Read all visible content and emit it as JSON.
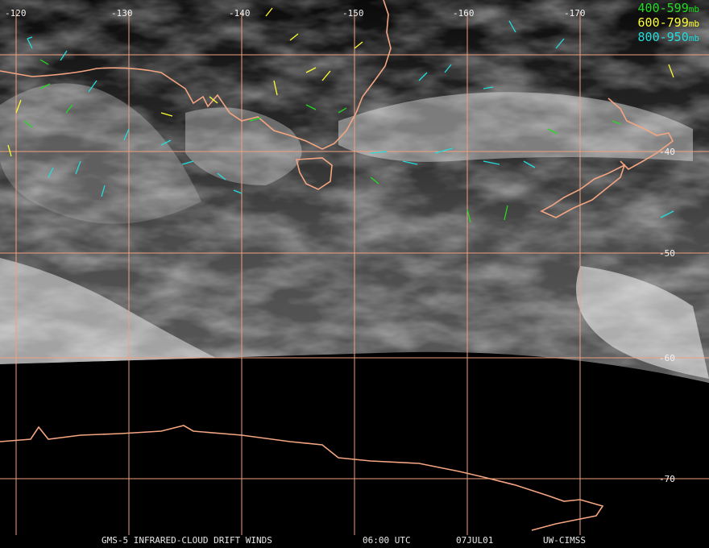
{
  "map": {
    "colors": {
      "grid": "#f0a080",
      "coast": "#f4a582",
      "background": "#000000",
      "label": "#f2f2f2"
    },
    "longitude_labels": [
      "-120",
      "-130",
      "-140",
      "-150",
      "-160",
      "-170"
    ],
    "latitude_labels": [
      "-40",
      "-50",
      "-60",
      "-70"
    ]
  },
  "legend": [
    {
      "range": "400-599",
      "unit": "mb",
      "color": "#22dd22"
    },
    {
      "range": "600-799",
      "unit": "mb",
      "color": "#ffff33"
    },
    {
      "range": "800-950",
      "unit": "mb",
      "color": "#22dddd"
    }
  ],
  "footer": {
    "product": "GMS-5 INFRARED-CLOUD DRIFT WINDS",
    "time": "06:00 UTC",
    "date": "07JUL01",
    "source": "UW-CIMSS"
  }
}
